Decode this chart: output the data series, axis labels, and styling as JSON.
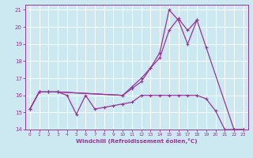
{
  "line1_x": [
    0,
    1,
    2,
    3,
    4,
    5,
    6,
    7,
    8,
    9,
    10,
    11,
    12,
    13,
    14,
    15,
    16,
    17,
    18,
    19,
    20,
    21,
    22,
    23
  ],
  "line1_y": [
    15.2,
    16.2,
    16.2,
    16.2,
    16.0,
    14.9,
    16.0,
    15.2,
    15.3,
    15.4,
    15.5,
    15.6,
    16.0,
    16.0,
    16.0,
    16.0,
    16.0,
    16.0,
    16.0,
    15.8,
    15.1,
    14.0,
    14.0,
    14.0
  ],
  "line2_x": [
    0,
    1,
    2,
    3,
    10,
    11,
    12,
    13,
    14,
    15,
    16,
    17,
    18,
    19,
    22,
    23
  ],
  "line2_y": [
    15.2,
    16.2,
    16.2,
    16.2,
    16.0,
    16.5,
    17.0,
    17.6,
    18.2,
    19.8,
    20.5,
    19.8,
    20.4,
    18.8,
    14.0,
    14.0
  ],
  "line3_x": [
    0,
    1,
    2,
    3,
    10,
    11,
    12,
    13,
    14,
    15,
    16,
    17,
    18
  ],
  "line3_y": [
    15.2,
    16.2,
    16.2,
    16.2,
    16.0,
    16.4,
    16.8,
    17.6,
    18.5,
    21.0,
    20.4,
    19.0,
    20.4
  ],
  "xlabel": "Windchill (Refroidissement éolien,°C)",
  "xlim": [
    -0.5,
    23.5
  ],
  "ylim": [
    14,
    21.3
  ],
  "yticks": [
    14,
    15,
    16,
    17,
    18,
    19,
    20,
    21
  ],
  "xticks": [
    0,
    1,
    2,
    3,
    4,
    5,
    6,
    7,
    8,
    9,
    10,
    11,
    12,
    13,
    14,
    15,
    16,
    17,
    18,
    19,
    20,
    21,
    22,
    23
  ],
  "line_color": "#993399",
  "bg_color": "#cce8f0",
  "grid_color": "#ffffff",
  "marker": "+"
}
